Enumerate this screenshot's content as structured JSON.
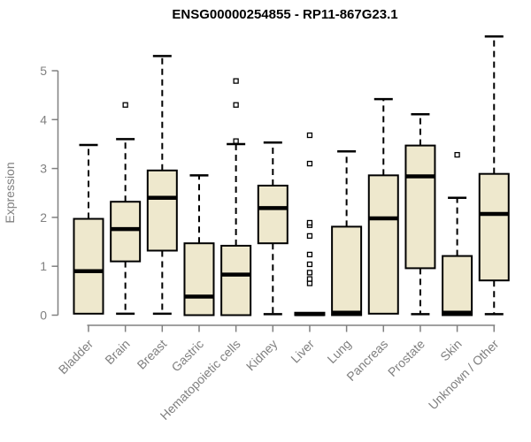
{
  "chart_data": {
    "type": "boxplot",
    "title": "ENSG00000254855 - RP11-867G23.1",
    "ylabel": "Expression",
    "xlabel": "",
    "ylim": [
      0,
      5.8
    ],
    "yticks": [
      0,
      1,
      2,
      3,
      4,
      5
    ],
    "grid": false,
    "legend": "none",
    "categories": [
      "Bladder",
      "Brain",
      "Breast",
      "Gastric",
      "Hematopoietic cells",
      "Kidney",
      "Liver",
      "Lung",
      "Pancreas",
      "Prostate",
      "Skin",
      "Unknown / Other"
    ],
    "series": [
      {
        "name": "Bladder",
        "min": 0.03,
        "q1": 0.03,
        "median": 0.9,
        "q3": 1.97,
        "max": 3.48,
        "outliers": []
      },
      {
        "name": "Brain",
        "min": 0.03,
        "q1": 1.1,
        "median": 1.76,
        "q3": 2.32,
        "max": 3.6,
        "outliers": [
          4.3
        ]
      },
      {
        "name": "Breast",
        "min": 0.03,
        "q1": 1.32,
        "median": 2.4,
        "q3": 2.96,
        "max": 5.3,
        "outliers": []
      },
      {
        "name": "Gastric",
        "min": 0.0,
        "q1": 0.0,
        "median": 0.38,
        "q3": 1.47,
        "max": 2.86,
        "outliers": []
      },
      {
        "name": "Hematopoietic cells",
        "min": 0.0,
        "q1": 0.0,
        "median": 0.83,
        "q3": 1.42,
        "max": 3.5,
        "outliers": [
          3.56,
          4.3,
          4.79
        ]
      },
      {
        "name": "Kidney",
        "min": 0.02,
        "q1": 1.47,
        "median": 2.19,
        "q3": 2.65,
        "max": 3.53,
        "outliers": []
      },
      {
        "name": "Liver",
        "min": 0.0,
        "q1": 0.0,
        "median": 0.02,
        "q3": 0.05,
        "max": 0.05,
        "outliers": [
          0.65,
          0.74,
          0.87,
          1.04,
          1.24,
          1.62,
          1.84,
          1.89,
          3.1,
          3.68
        ]
      },
      {
        "name": "Lung",
        "min": 0.0,
        "q1": 0.0,
        "median": 0.05,
        "q3": 1.81,
        "max": 3.35,
        "outliers": []
      },
      {
        "name": "Pancreas",
        "min": 0.03,
        "q1": 0.03,
        "median": 1.98,
        "q3": 2.86,
        "max": 4.42,
        "outliers": []
      },
      {
        "name": "Prostate",
        "min": 0.02,
        "q1": 0.96,
        "median": 2.84,
        "q3": 3.47,
        "max": 4.11,
        "outliers": []
      },
      {
        "name": "Skin",
        "min": 0.0,
        "q1": 0.0,
        "median": 0.05,
        "q3": 1.21,
        "max": 2.4,
        "outliers": [
          3.28
        ]
      },
      {
        "name": "Unknown / Other",
        "min": 0.02,
        "q1": 0.71,
        "median": 2.07,
        "q3": 2.89,
        "max": 5.7,
        "outliers": []
      }
    ],
    "colors": {
      "box_fill": "#EEE8CD",
      "box_border": "#000000",
      "median": "#000000",
      "outlier_stroke": "#000000",
      "axis": "#808080",
      "tick_label": "#808080",
      "category_label": "#808080",
      "title": "#000000",
      "background": "#FFFFFF"
    }
  }
}
